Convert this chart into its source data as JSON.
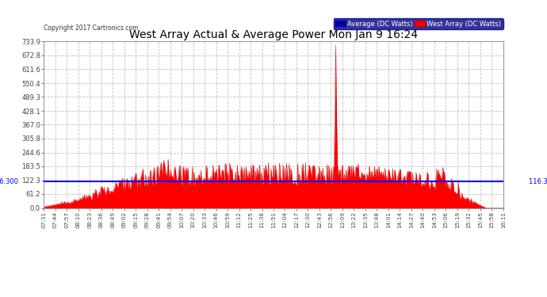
{
  "title": "West Array Actual & Average Power Mon Jan 9 16:24",
  "copyright": "Copyright 2017 Cartronics.com",
  "average_value": 116.3,
  "y_max": 733.9,
  "y_min": 0.0,
  "yticks": [
    0.0,
    61.2,
    122.3,
    183.5,
    244.6,
    305.8,
    367.0,
    428.1,
    489.3,
    550.4,
    611.6,
    672.8,
    733.9
  ],
  "legend_average_label": "Average (DC Watts)",
  "legend_west_label": "West Array (DC Watts)",
  "avg_line_color": "#0000FF",
  "west_fill_color": "#FF0000",
  "west_line_color": "#CC0000",
  "background_color": "#FFFFFF",
  "grid_color": "#BBBBBB",
  "title_color": "#000000",
  "x_tick_labels": [
    "07:31",
    "07:44",
    "07:57",
    "08:10",
    "08:23",
    "08:36",
    "08:49",
    "09:02",
    "09:15",
    "09:28",
    "09:41",
    "09:54",
    "10:07",
    "10:20",
    "10:33",
    "10:46",
    "10:59",
    "11:12",
    "11:25",
    "11:38",
    "11:51",
    "12:04",
    "12:17",
    "12:30",
    "12:43",
    "12:56",
    "13:09",
    "13:22",
    "13:35",
    "13:48",
    "14:01",
    "14:14",
    "14:27",
    "14:40",
    "14:53",
    "15:06",
    "15:19",
    "15:32",
    "15:45",
    "15:58",
    "16:11"
  ]
}
